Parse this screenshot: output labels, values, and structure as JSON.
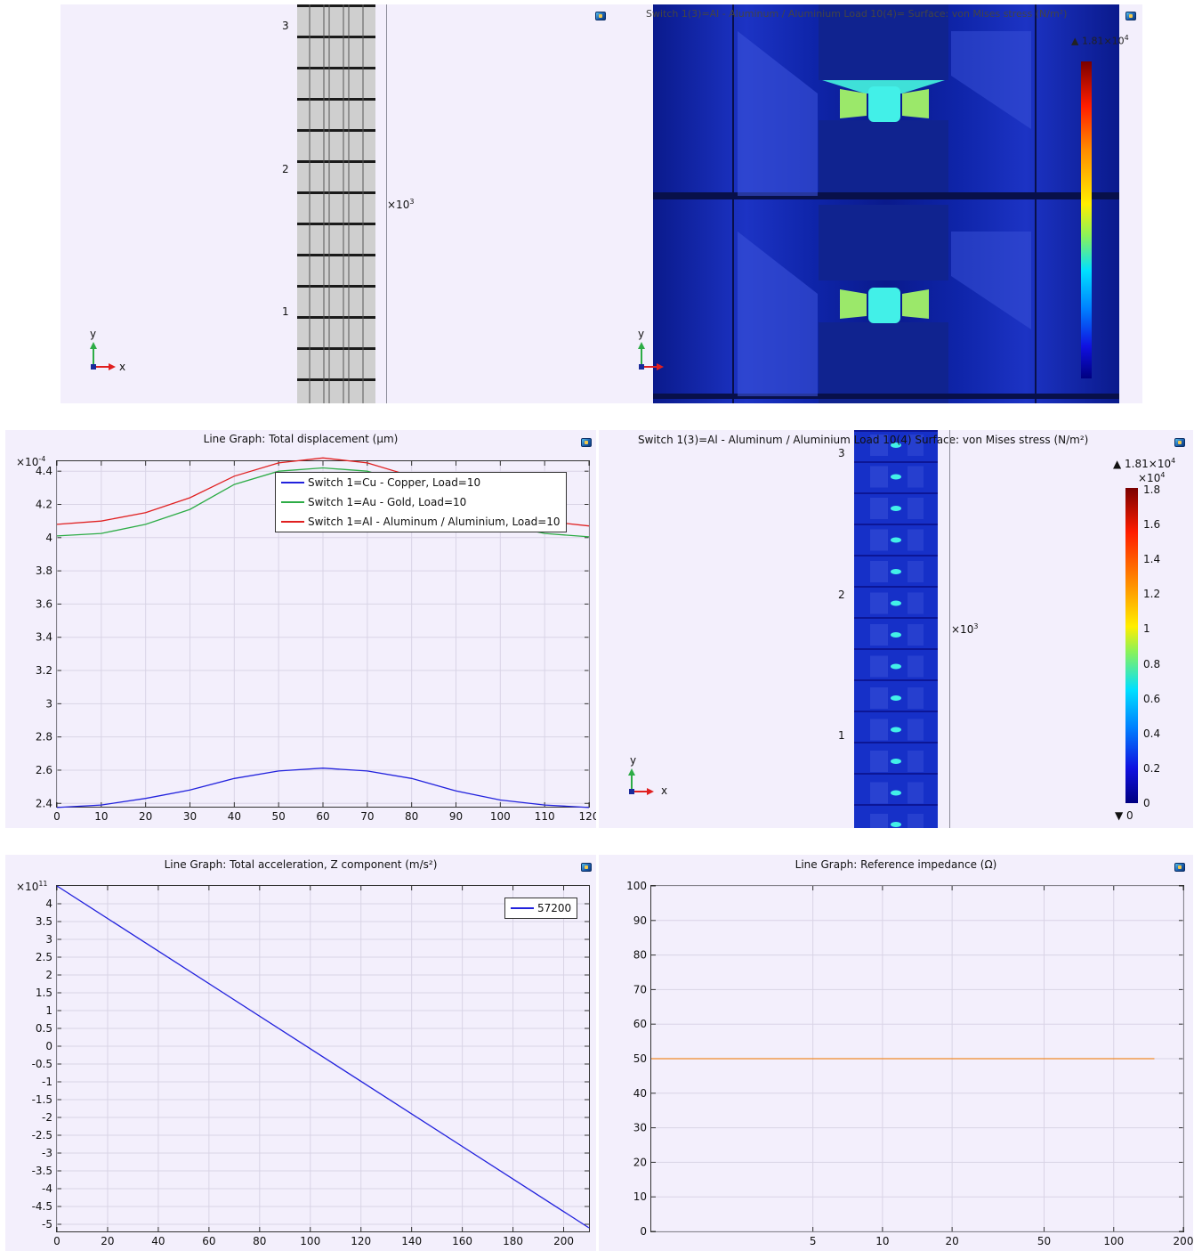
{
  "geometry_panel": {
    "y_ticks": [
      "3",
      "2",
      "1"
    ],
    "multiplier_base": "×10",
    "multiplier_exp": "3",
    "axis_y": "y",
    "axis_x": "x"
  },
  "stress_top_panel": {
    "title": "Switch 1(3)=Al - Aluminum / Aluminium Load 10(4)=  Surface: von Mises stress (N/m²)",
    "cb_max_base": "▲ 1.81×10",
    "cb_max_exp": "4",
    "axis_y": "y"
  },
  "displacement_panel": {
    "title": "Line Graph: Total displacement (µm)",
    "multiplier_base": "×10",
    "multiplier_exp": "-4",
    "chart_data": {
      "type": "line",
      "title": "Line Graph: Total displacement (µm)",
      "x": [
        0,
        10,
        20,
        30,
        40,
        50,
        60,
        70,
        80,
        90,
        100,
        110,
        120
      ],
      "series": [
        {
          "name": "Switch 1=Cu - Copper, Load=10",
          "color": "#2222dd",
          "values": [
            2.375,
            2.39,
            2.43,
            2.48,
            2.55,
            2.595,
            2.612,
            2.595,
            2.55,
            2.475,
            2.42,
            2.39,
            2.375
          ]
        },
        {
          "name": "Switch 1=Au - Gold, Load=10",
          "color": "#2dac46",
          "values": [
            4.01,
            4.025,
            4.08,
            4.17,
            4.32,
            4.4,
            4.42,
            4.4,
            4.32,
            4.17,
            4.08,
            4.025,
            4.005
          ]
        },
        {
          "name": "Switch 1=Al - Aluminum / Aluminium, Load=10",
          "color": "#e02020",
          "values": [
            4.08,
            4.1,
            4.15,
            4.24,
            4.37,
            4.45,
            4.48,
            4.45,
            4.37,
            4.24,
            4.15,
            4.1,
            4.07
          ]
        }
      ],
      "xlim": [
        0,
        120
      ],
      "ylim": [
        2.38,
        4.46
      ],
      "x_ticks": [
        "0",
        "10",
        "20",
        "30",
        "40",
        "50",
        "60",
        "70",
        "80",
        "90",
        "100",
        "110",
        "120"
      ],
      "y_ticks": [
        "4.4",
        "4.2",
        "4",
        "3.8",
        "3.6",
        "3.4",
        "3.2",
        "3",
        "2.8",
        "2.6",
        "2.4"
      ],
      "legend_position": "top-right",
      "grid": true
    }
  },
  "stress_mid_panel": {
    "title": "Switch 1(3)=Al - Aluminum / Aluminium Load 10(4)  Surface: von Mises stress (N/m²)",
    "y_ticks": [
      "3",
      "2",
      "1"
    ],
    "multiplier_base": "×10",
    "multiplier_exp": "3",
    "axis_y": "y",
    "axis_x": "x",
    "colorbar": {
      "max_label_base": "▲ 1.81×10",
      "max_label_exp": "4",
      "unit_base": "×10",
      "unit_exp": "4",
      "ticks": [
        "1.8",
        "1.6",
        "1.4",
        "1.2",
        "1",
        "0.8",
        "0.6",
        "0.4",
        "0.2",
        "0"
      ],
      "min_label": "▼ 0"
    }
  },
  "acceleration_panel": {
    "title": "Line Graph: Total acceleration, Z component (m/s²)",
    "multiplier_base": "×10",
    "multiplier_exp": "11",
    "chart_data": {
      "type": "line",
      "title": "Line Graph: Total acceleration, Z component (m/s²)",
      "x": [
        0,
        210
      ],
      "series": [
        {
          "name": "57200",
          "color": "#2222dd",
          "values": [
            4.5,
            -5.1
          ]
        }
      ],
      "xlim": [
        0,
        210
      ],
      "ylim": [
        -5.2,
        4.5
      ],
      "x_ticks": [
        "0",
        "20",
        "40",
        "60",
        "80",
        "100",
        "120",
        "140",
        "160",
        "180",
        "200"
      ],
      "y_ticks": [
        "4",
        "3.5",
        "3",
        "2.5",
        "2",
        "1.5",
        "1",
        "0.5",
        "0",
        "-0.5",
        "-1",
        "-1.5",
        "-2",
        "-2.5",
        "-3",
        "-3.5",
        "-4",
        "-4.5",
        "-5"
      ],
      "legend_position": "top-right",
      "grid": true
    }
  },
  "impedance_panel": {
    "title": "Line Graph: Reference impedance (Ω)",
    "chart_data": {
      "type": "line",
      "title": "Line Graph: Reference impedance (Ω)",
      "x_scale": "log",
      "x": [
        1,
        150
      ],
      "series": [
        {
          "color": "#f08a2a",
          "values": [
            50,
            50
          ]
        }
      ],
      "xlim": [
        1,
        200
      ],
      "ylim": [
        0,
        100
      ],
      "x_ticks": [
        "5",
        "10",
        "20",
        "50",
        "100",
        "200"
      ],
      "y_ticks": [
        "100",
        "90",
        "80",
        "70",
        "60",
        "50",
        "40",
        "30",
        "20",
        "10",
        "0"
      ],
      "grid": true
    }
  }
}
